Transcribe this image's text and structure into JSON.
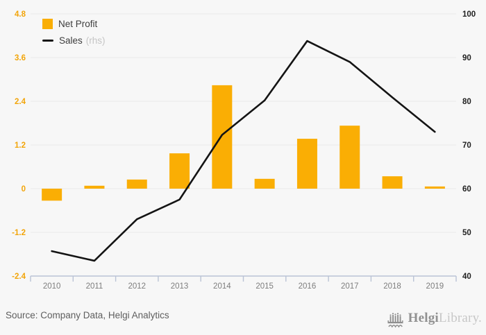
{
  "legend": {
    "net_profit": "Net Profit",
    "sales": "Sales",
    "sales_suffix": "(rhs)"
  },
  "source": {
    "text": "Source: Company Data, Helgi Analytics"
  },
  "logo": {
    "bold": "Helgi",
    "light": "Library."
  },
  "colors": {
    "background": "#f7f7f7",
    "bar": "#FAAE04",
    "line": "#141414",
    "grid": "#e9e9e9",
    "axis": "#bac3d5",
    "left_axis_labels": "#F2A50A",
    "right_axis_labels": "#1f1f1f",
    "year_labels": "#7d7d7d",
    "rhs_text": "#c5c5c5"
  },
  "chart_data": {
    "type": "bar",
    "subtype": "bar-and-line-combo",
    "title": "",
    "categories": [
      "2010",
      "2011",
      "2012",
      "2013",
      "2014",
      "2015",
      "2016",
      "2017",
      "2018",
      "2019"
    ],
    "series": [
      {
        "name": "Net Profit",
        "type": "bar",
        "axis": "left",
        "values": [
          -0.33,
          0.08,
          0.25,
          0.97,
          2.84,
          0.27,
          1.37,
          1.73,
          0.34,
          0.06
        ]
      },
      {
        "name": "Sales (rhs)",
        "type": "line",
        "axis": "right",
        "values": [
          45.7,
          43.5,
          53.0,
          57.5,
          72.3,
          80.2,
          93.8,
          89.0,
          80.9,
          73.0
        ]
      }
    ],
    "left_axis": {
      "min": -2.4,
      "max": 4.8,
      "step": 1.2,
      "tick_labels": [
        "4.8",
        "3.6",
        "2.4",
        "1.2",
        "0",
        "-1.2",
        "-2.4"
      ]
    },
    "right_axis": {
      "min": 40,
      "max": 100,
      "step": 10,
      "tick_labels": [
        "100",
        "90",
        "80",
        "70",
        "60",
        "50",
        "40"
      ]
    },
    "grid": true,
    "legend_position": "top-left"
  }
}
